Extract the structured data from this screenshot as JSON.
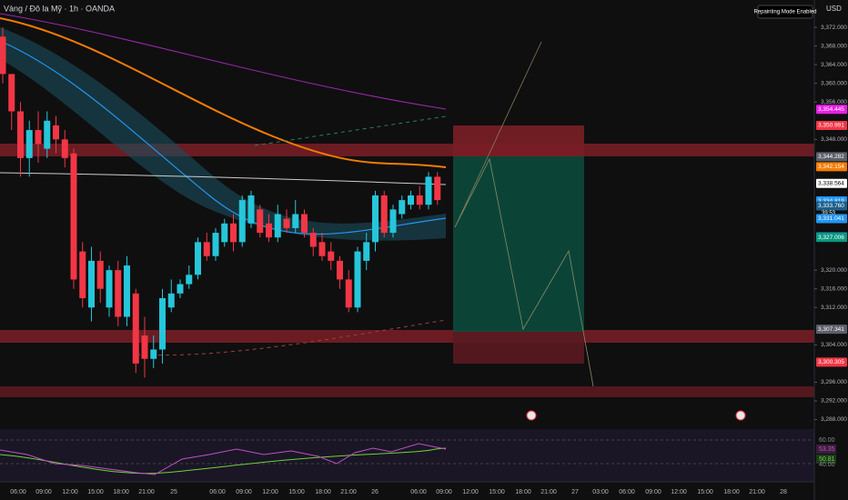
{
  "header": {
    "symbol": "Vàng / Đô la Mỹ · 1h · OANDA",
    "mode_badge": "Repainting Mode Enabled",
    "currency": "USD"
  },
  "chart_data": {
    "type": "candlestick",
    "open": [
      3370,
      3362,
      3354,
      3344,
      3350,
      3346,
      3351,
      3348,
      3345,
      3324,
      3312,
      3322,
      3312,
      3320,
      3310,
      3315,
      3306,
      3301,
      3303,
      3312,
      3315,
      3317,
      3319,
      3326,
      3323,
      3326,
      3330,
      3326,
      3330,
      3333,
      3330,
      3327,
      3331,
      3329,
      3332,
      3328,
      3326,
      3324,
      3322,
      3318,
      3312,
      3322,
      3326,
      3336,
      3328,
      3332,
      3334,
      3336,
      3334,
      3340
    ],
    "high": [
      3372,
      3362,
      3356,
      3352,
      3354,
      3354,
      3353,
      3350,
      3346,
      3326,
      3325,
      3324,
      3321,
      3322,
      3323,
      3316,
      3310,
      3306,
      3316,
      3318,
      3318,
      3321,
      3327,
      3328,
      3329,
      3331,
      3332,
      3336,
      3337,
      3334,
      3332,
      3334,
      3333,
      3335,
      3333,
      3329,
      3328,
      3326,
      3323,
      3320,
      3325,
      3328,
      3337,
      3337,
      3334,
      3336,
      3337,
      3338,
      3341,
      3341
    ],
    "low": [
      3360,
      3350,
      3340,
      3340,
      3343,
      3344,
      3345,
      3342,
      3316,
      3312,
      3309,
      3313,
      3310,
      3308,
      3308,
      3298,
      3297,
      3299,
      3300,
      3311,
      3314,
      3316,
      3318,
      3322,
      3322,
      3325,
      3324,
      3325,
      3329,
      3327,
      3326,
      3326,
      3328,
      3328,
      3327,
      3323,
      3322,
      3320,
      3316,
      3311,
      3311,
      3320,
      3324,
      3327,
      3327,
      3331,
      3333,
      3333,
      3333,
      3334
    ],
    "close": [
      3362,
      3354,
      3344,
      3350,
      3347,
      3352,
      3348,
      3344,
      3318,
      3314,
      3322,
      3316,
      3320,
      3310,
      3321,
      3300,
      3301,
      3303,
      3314,
      3315,
      3317,
      3319,
      3326,
      3323,
      3328,
      3330,
      3326,
      3335,
      3336,
      3328,
      3327,
      3332,
      3329,
      3332,
      3328,
      3325,
      3323,
      3322,
      3318,
      3312,
      3324,
      3326,
      3336,
      3328,
      3333,
      3335,
      3336,
      3334,
      3340,
      3335
    ],
    "up_color": "#26c6da",
    "down_color": "#f23645",
    "ylim": [
      3286,
      3376
    ],
    "yticks": [
      {
        "value": 3372,
        "label": "3,372.000"
      },
      {
        "value": 3368,
        "label": "3,368.000"
      },
      {
        "value": 3364,
        "label": "3,364.000"
      },
      {
        "value": 3360,
        "label": "3,360.000"
      },
      {
        "value": 3356,
        "label": "3,356.000"
      },
      {
        "value": 3348,
        "label": "3,348.000"
      },
      {
        "value": 3320,
        "label": "3,320.000"
      },
      {
        "value": 3316,
        "label": "3,316.000"
      },
      {
        "value": 3312,
        "label": "3,312.000"
      },
      {
        "value": 3304,
        "label": "3,304.000"
      },
      {
        "value": 3296,
        "label": "3,296.000"
      },
      {
        "value": 3292,
        "label": "3,292.000"
      },
      {
        "value": 3288,
        "label": "3,288.000"
      }
    ],
    "price_labels": [
      {
        "value": 3354.445,
        "label": "3,354.445",
        "color": "#e91ee6"
      },
      {
        "value": 3350.991,
        "label": "3,350.991",
        "color": "#f23645"
      },
      {
        "value": 3344.282,
        "label": "3,344.282",
        "color": "#5d606b"
      },
      {
        "value": 3342.154,
        "label": "3,342.154",
        "color": "#f57c00"
      },
      {
        "value": 3338.564,
        "label": "3,338.564",
        "color": "#ffffff"
      },
      {
        "value": 3334.819,
        "label": "3,334.819",
        "color": "#2196f3"
      },
      {
        "value": 3333.76,
        "label": "3,333.760",
        "color": "#1c5f8a"
      },
      {
        "value": 3331.041,
        "label": "3,331.041",
        "color": "#2196f3"
      },
      {
        "value": 3327.139,
        "label": "3,327.139",
        "color": "#089981"
      },
      {
        "value": 3327.117,
        "label": "3,327.117",
        "color": "#2196f3"
      },
      {
        "value": 3327.006,
        "label": "3,327.006",
        "color": "#089981"
      },
      {
        "value": 3307.341,
        "label": "3,307.341",
        "color": "#5d606b"
      },
      {
        "value": 3300.305,
        "label": "3,300.305",
        "color": "#f23645"
      }
    ],
    "countdown": "39:53",
    "time_labels": [
      "06:00",
      "09:00",
      "12:00",
      "15:00",
      "18:00",
      "21:00",
      "25",
      "06:00",
      "09:00",
      "12:00",
      "15:00",
      "18:00",
      "21:00",
      "26",
      "06:00",
      "09:00",
      "12:00",
      "15:00",
      "18:00",
      "21:00",
      "27",
      "03:00",
      "06:00",
      "09:00",
      "12:00",
      "15:00",
      "18:00",
      "21:00",
      "28"
    ],
    "rsi_labels": [
      {
        "text": "60.00",
        "color": "#888"
      },
      {
        "text": "53.35",
        "color": "#c050c0"
      },
      {
        "text": "50.81",
        "color": "#6fd13a"
      },
      {
        "text": "40.00",
        "color": "#888"
      }
    ]
  }
}
